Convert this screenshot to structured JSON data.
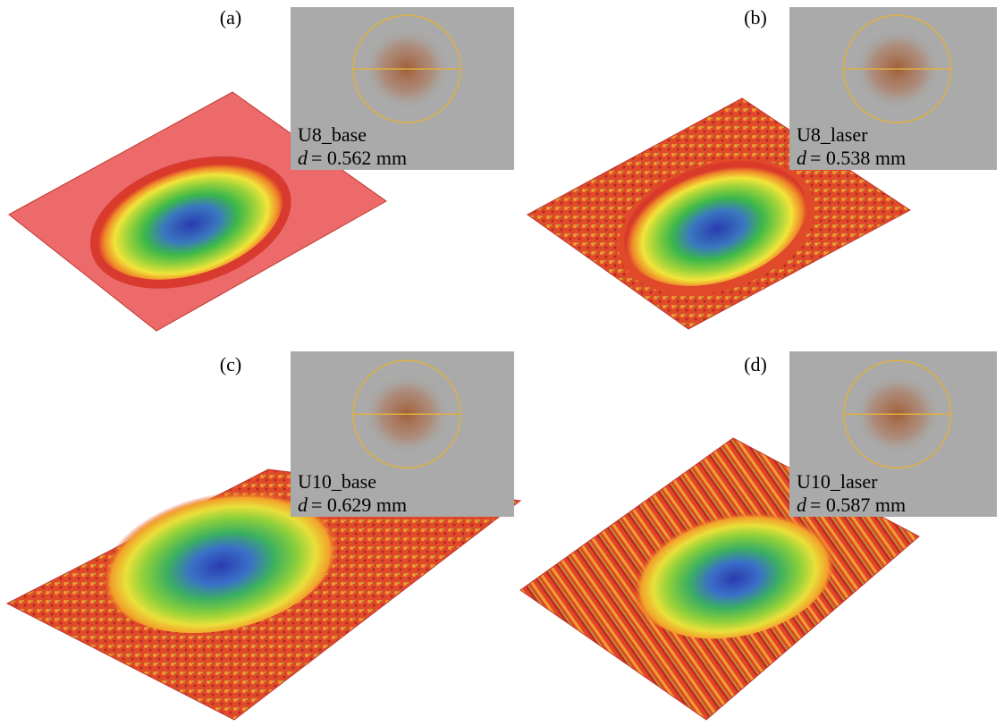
{
  "panels": [
    {
      "label": "(a)",
      "sample": "U8_base",
      "symbol": "d",
      "diameter": "= 0.562 mm"
    },
    {
      "label": "(b)",
      "sample": "U8_laser",
      "symbol": "d",
      "diameter": "= 0.538 mm"
    },
    {
      "label": "(c)",
      "sample": "U10_base",
      "symbol": "d",
      "diameter": "= 0.629 mm"
    },
    {
      "label": "(d)",
      "sample": "U10_laser",
      "symbol": "d",
      "diameter": "= 0.587 mm"
    }
  ]
}
